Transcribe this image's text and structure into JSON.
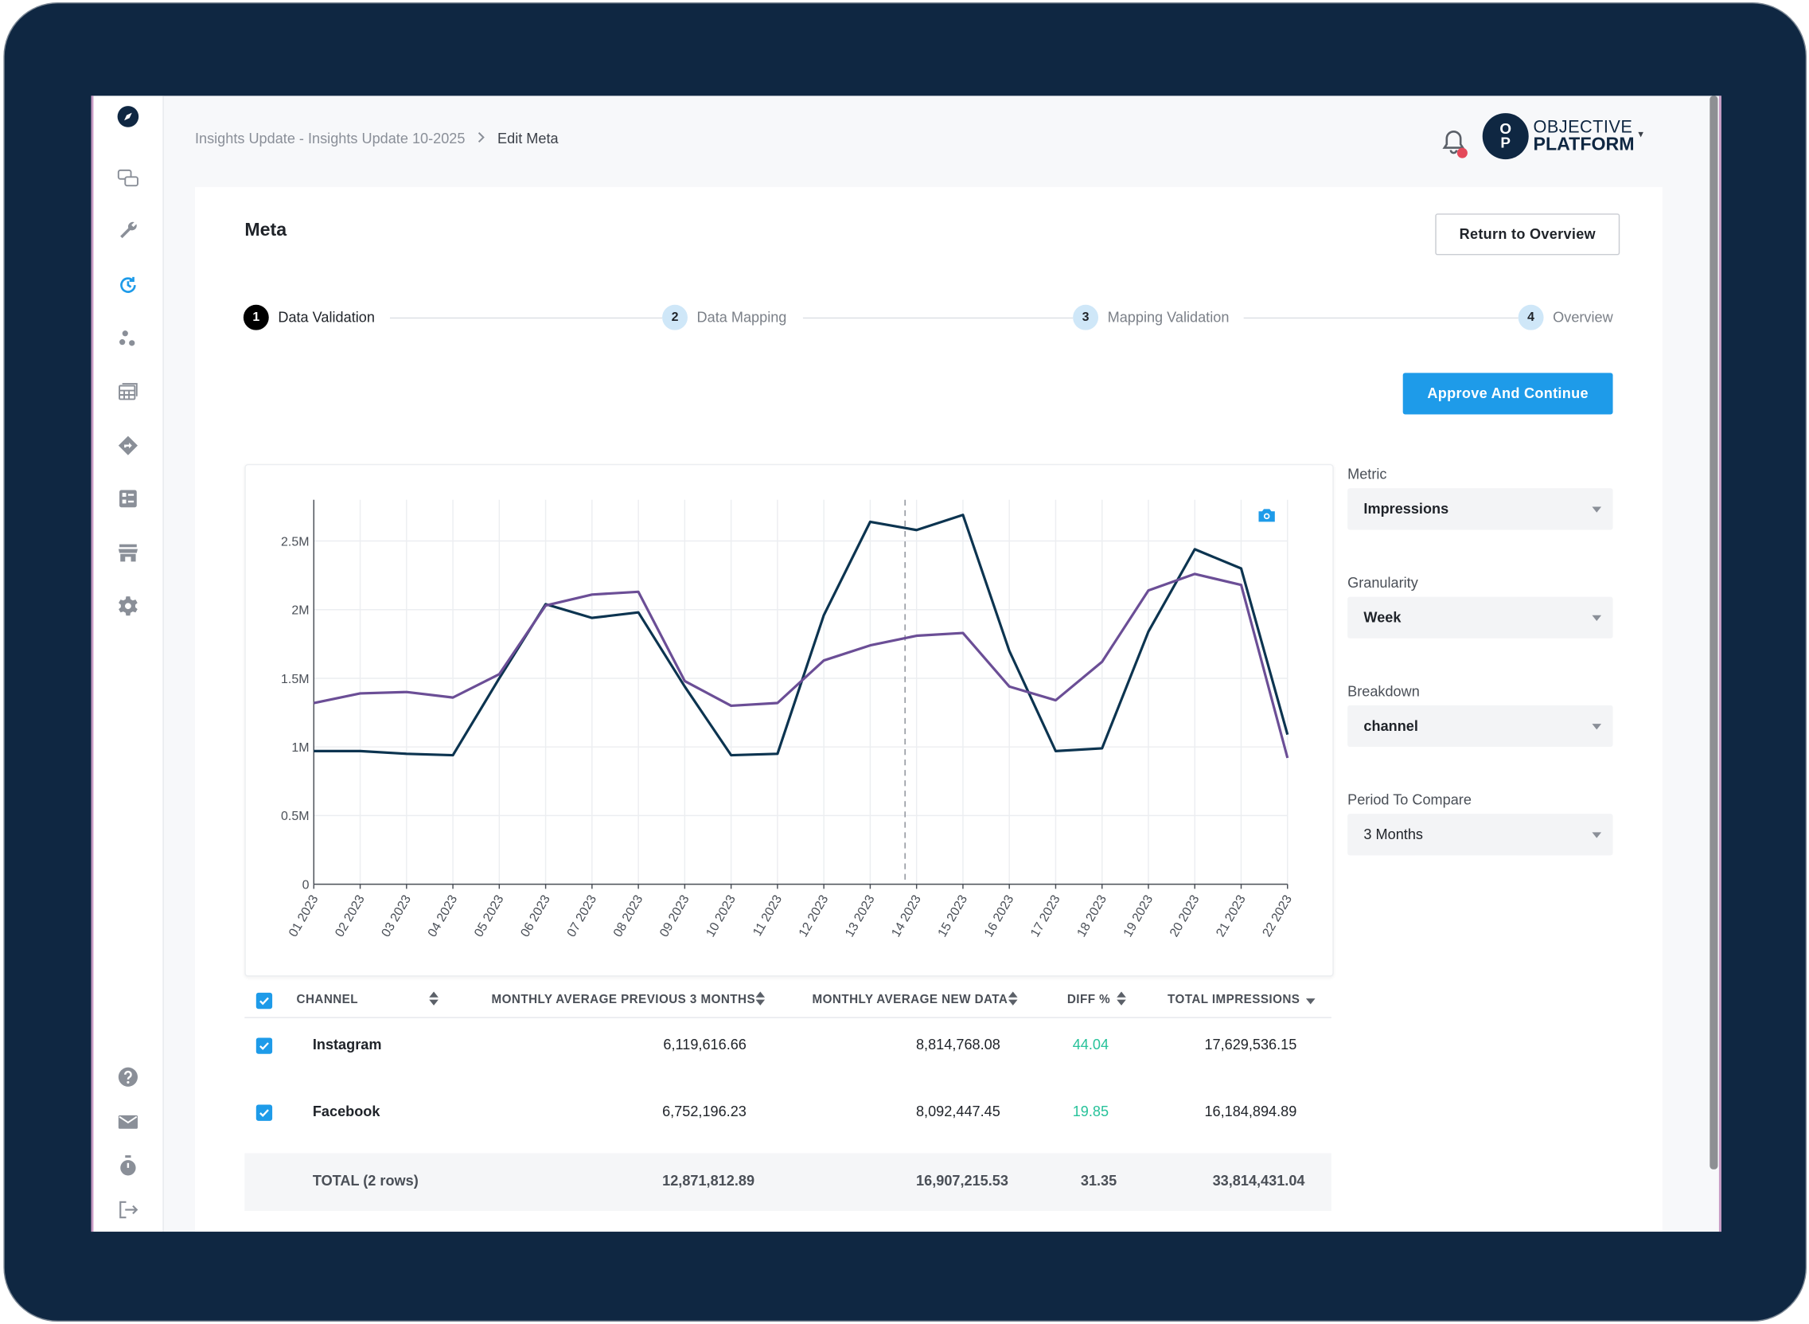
{
  "breadcrumb": {
    "parent": "Insights Update - Insights Update 10-2025",
    "current": "Edit Meta"
  },
  "header": {
    "logo_top": "OBJECTIVE",
    "logo_bottom": "PLATFORM",
    "logo_mark_top": "O",
    "logo_mark_bottom": "P"
  },
  "page": {
    "title": "Meta",
    "return_button": "Return to Overview",
    "approve_button": "Approve And Continue"
  },
  "steps": [
    {
      "num": "1",
      "label": "Data Validation",
      "active": true
    },
    {
      "num": "2",
      "label": "Data Mapping",
      "active": false
    },
    {
      "num": "3",
      "label": "Mapping Validation",
      "active": false
    },
    {
      "num": "4",
      "label": "Overview",
      "active": false
    }
  ],
  "filters": {
    "metric": {
      "label": "Metric",
      "value": "Impressions"
    },
    "granularity": {
      "label": "Granularity",
      "value": "Week"
    },
    "breakdown": {
      "label": "Breakdown",
      "value": "channel"
    },
    "period": {
      "label": "Period To Compare",
      "value": "3 Months"
    }
  },
  "colors": {
    "accent": "#1e9be9",
    "series_dark": "#0c3450",
    "series_purple": "#6b4e96",
    "positive": "#27c29a",
    "bezel": "#0f2742"
  },
  "chart_data": {
    "type": "line",
    "x": [
      "01 2023",
      "02 2023",
      "03 2023",
      "04 2023",
      "05 2023",
      "06 2023",
      "07 2023",
      "08 2023",
      "09 2023",
      "10 2023",
      "11 2023",
      "12 2023",
      "13 2023",
      "14 2023",
      "15 2023",
      "16 2023",
      "17 2023",
      "18 2023",
      "19 2023",
      "20 2023",
      "21 2023",
      "22 2023"
    ],
    "series": [
      {
        "color": "#0c3450",
        "values": [
          970000,
          970000,
          950000,
          940000,
          1500000,
          2040000,
          1940000,
          1980000,
          1440000,
          940000,
          950000,
          1960000,
          2640000,
          2580000,
          2690000,
          1700000,
          970000,
          990000,
          1840000,
          2440000,
          2300000,
          1090000
        ]
      },
      {
        "color": "#6b4e96",
        "values": [
          1320000,
          1390000,
          1400000,
          1360000,
          1530000,
          2030000,
          2110000,
          2130000,
          1480000,
          1300000,
          1320000,
          1630000,
          1740000,
          1810000,
          1830000,
          1440000,
          1340000,
          1620000,
          2140000,
          2260000,
          2180000,
          920000
        ]
      }
    ],
    "y_ticks": [
      "0",
      "0.5M",
      "1M",
      "1.5M",
      "2M",
      "2.5M"
    ],
    "ylim": [
      0,
      2800000
    ],
    "marker_x": "14 2023",
    "grid": true,
    "legend": "none"
  },
  "table": {
    "headers": [
      "CHANNEL",
      "MONTHLY AVERAGE PREVIOUS 3 MONTHS",
      "MONTHLY AVERAGE NEW DATA",
      "DIFF %",
      "TOTAL IMPRESSIONS"
    ],
    "rows": [
      {
        "channel": "Instagram",
        "prev": "6,119,616.66",
        "new": "8,814,768.08",
        "diff": "44.04",
        "total": "17,629,536.15"
      },
      {
        "channel": "Facebook",
        "prev": "6,752,196.23",
        "new": "8,092,447.45",
        "diff": "19.85",
        "total": "16,184,894.89"
      }
    ],
    "total": {
      "label": "TOTAL (2 rows)",
      "prev": "12,871,812.89",
      "new": "16,907,215.53",
      "diff": "31.35",
      "total": "33,814,431.04"
    }
  },
  "sidebar": {
    "icons": [
      "compass-icon",
      "chat-icon",
      "wrench-icon",
      "history-icon",
      "dots-icon",
      "table-icon",
      "directions-icon",
      "dashboard-icon",
      "store-icon",
      "gear-icon",
      "help-icon",
      "mail-icon",
      "timer-icon",
      "logout-icon"
    ]
  }
}
